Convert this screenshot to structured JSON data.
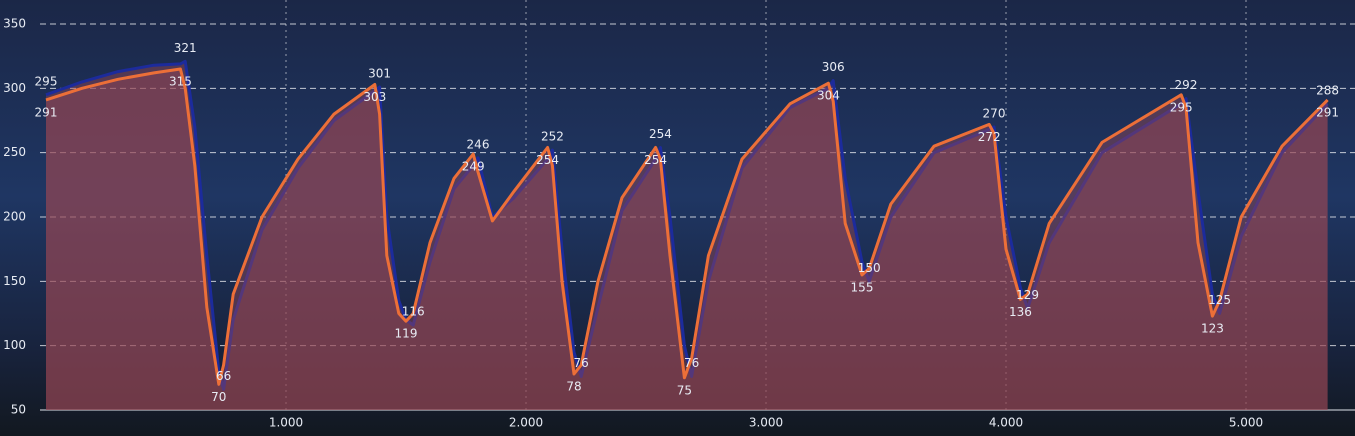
{
  "chart_data": {
    "type": "line",
    "x": [
      0.0,
      0.15,
      0.3,
      0.45,
      0.56,
      0.58,
      0.62,
      0.67,
      0.72,
      0.74,
      0.78,
      0.9,
      1.05,
      1.2,
      1.37,
      1.39,
      1.42,
      1.47,
      1.5,
      1.53,
      1.6,
      1.7,
      1.78,
      1.8,
      1.86,
      1.95,
      2.09,
      2.11,
      2.15,
      2.2,
      2.23,
      2.3,
      2.4,
      2.54,
      2.56,
      2.6,
      2.66,
      2.69,
      2.76,
      2.9,
      3.1,
      3.26,
      3.28,
      3.33,
      3.4,
      3.43,
      3.52,
      3.7,
      3.93,
      3.95,
      4.0,
      4.06,
      4.09,
      4.18,
      4.4,
      4.73,
      4.75,
      4.8,
      4.86,
      4.89,
      4.98,
      5.15,
      5.34
    ],
    "series": [
      {
        "color": "#1c2b9c",
        "values": [
          295,
          305,
          313,
          318,
          319,
          321,
          270,
          170,
          80,
          66,
          120,
          190,
          238,
          275,
          298,
          301,
          200,
          135,
          120,
          116,
          165,
          222,
          240,
          246,
          200,
          215,
          245,
          252,
          175,
          95,
          76,
          130,
          205,
          245,
          254,
          200,
          100,
          76,
          150,
          238,
          285,
          300,
          306,
          230,
          165,
          150,
          200,
          250,
          268,
          270,
          200,
          145,
          129,
          180,
          250,
          288,
          292,
          220,
          140,
          125,
          185,
          250,
          288
        ],
        "value_labels": [
          "295",
          null,
          null,
          null,
          null,
          "321",
          null,
          null,
          null,
          "66",
          null,
          null,
          null,
          null,
          null,
          "301",
          null,
          null,
          null,
          "116",
          null,
          null,
          null,
          "246",
          null,
          null,
          null,
          "252",
          null,
          null,
          "76",
          null,
          null,
          null,
          "254",
          null,
          null,
          "76",
          null,
          null,
          null,
          null,
          "306",
          null,
          null,
          "150",
          null,
          null,
          null,
          "270",
          null,
          null,
          "129",
          null,
          null,
          null,
          "292",
          null,
          null,
          "125",
          null,
          null,
          "288"
        ]
      },
      {
        "color": "#ec6f38",
        "values": [
          291,
          300,
          307,
          312,
          315,
          300,
          240,
          130,
          70,
          85,
          140,
          200,
          245,
          280,
          303,
          280,
          170,
          125,
          119,
          125,
          180,
          230,
          249,
          235,
          197,
          220,
          254,
          240,
          150,
          78,
          85,
          150,
          215,
          254,
          245,
          170,
          75,
          90,
          170,
          245,
          288,
          304,
          290,
          195,
          155,
          160,
          210,
          255,
          272,
          265,
          175,
          136,
          140,
          195,
          258,
          295,
          285,
          180,
          123,
          135,
          200,
          255,
          291
        ],
        "value_labels": [
          "291",
          null,
          null,
          null,
          "315",
          null,
          null,
          null,
          "70",
          null,
          null,
          null,
          null,
          null,
          "303",
          null,
          null,
          null,
          "119",
          null,
          null,
          null,
          "249",
          null,
          null,
          null,
          "254",
          null,
          null,
          "78",
          null,
          null,
          null,
          "254",
          null,
          null,
          "75",
          null,
          null,
          null,
          null,
          "304",
          null,
          null,
          "155",
          null,
          null,
          null,
          "272",
          null,
          null,
          "136",
          null,
          null,
          null,
          "295",
          null,
          null,
          "123",
          null,
          null,
          null,
          "291"
        ]
      }
    ],
    "xlim": [
      -0.025,
      5.41
    ],
    "xticks": [
      {
        "value": 1,
        "label": "1.000"
      },
      {
        "value": 2,
        "label": "2.000"
      },
      {
        "value": 3,
        "label": "3.000"
      },
      {
        "value": 4,
        "label": "4.000"
      },
      {
        "value": 5,
        "label": "5.000"
      }
    ],
    "ylim": [
      50,
      350
    ],
    "yticks": [
      50,
      100,
      150,
      200,
      250,
      300,
      350
    ],
    "grid": true
  }
}
